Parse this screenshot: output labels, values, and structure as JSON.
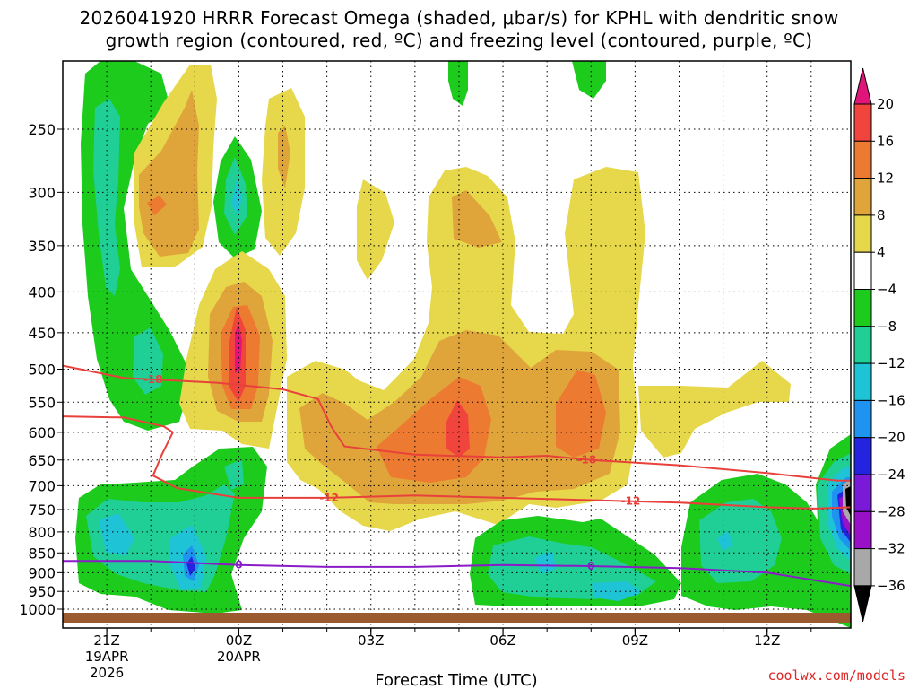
{
  "title_line1": "2026041920 HRRR Forecast Omega (shaded, μbar/s) for KPHL with dendritic snow",
  "title_line2": "growth region (contoured, red, ºC) and freezing level (contoured, purple, ºC)",
  "credit": "coolwx.com/models",
  "colors": {
    "snow_growth": "#e8413c",
    "freezing": "#8a1cc8",
    "terrain": "#9c5a2f",
    "grid": "#000000"
  },
  "chart_data": {
    "type": "heatmap",
    "title": "2026041920 HRRR Forecast Omega (shaded, μbar/s) for KPHL with dendritic snow growth region (contoured, red, ºC) and freezing level (contoured, purple, ºC)",
    "xlabel": "Forecast Time (UTC)",
    "ylabel": "",
    "x_ticks": [
      {
        "label": "21Z",
        "sub1": "19APR",
        "sub2": "2026",
        "hour": 1
      },
      {
        "label": "00Z",
        "sub1": "20APR",
        "sub2": "",
        "hour": 4
      },
      {
        "label": "03Z",
        "sub1": "",
        "sub2": "",
        "hour": 7
      },
      {
        "label": "06Z",
        "sub1": "",
        "sub2": "",
        "hour": 10
      },
      {
        "label": "09Z",
        "sub1": "",
        "sub2": "",
        "hour": 13
      },
      {
        "label": "12Z",
        "sub1": "",
        "sub2": "",
        "hour": 16
      }
    ],
    "xlim": [
      0,
      17.9
    ],
    "y_ticks": [
      250,
      300,
      350,
      400,
      450,
      500,
      550,
      600,
      650,
      700,
      750,
      800,
      850,
      900,
      950,
      1000
    ],
    "ylim_hpa": [
      200,
      1017
    ],
    "y_scale": "log-pressure",
    "colorbar": {
      "ticks": [
        "20",
        "16",
        "12",
        "8",
        "4",
        "−4",
        "−8",
        "−12",
        "−16",
        "−20",
        "−24",
        "−28",
        "−32",
        "−36"
      ],
      "bins": [
        {
          "range": ">20",
          "color": "#e0157a"
        },
        {
          "range": "16 to 20",
          "color": "#f0443c"
        },
        {
          "range": "12 to 16",
          "color": "#ec7a30"
        },
        {
          "range": "8 to 12",
          "color": "#e0a53a"
        },
        {
          "range": "4 to 8",
          "color": "#e6d84a"
        },
        {
          "range": "-4 to 4",
          "color": "#ffffff"
        },
        {
          "range": "-8 to -4",
          "color": "#1ccb1c"
        },
        {
          "range": "-12 to -8",
          "color": "#20cf95"
        },
        {
          "range": "-16 to -12",
          "color": "#1ec3d6"
        },
        {
          "range": "-20 to -16",
          "color": "#1f93f0"
        },
        {
          "range": "-24 to -20",
          "color": "#2424e0"
        },
        {
          "range": "-28 to -24",
          "color": "#7a1ad8"
        },
        {
          "range": "-32 to -28",
          "color": "#9810c8"
        },
        {
          "range": "-36 to -32",
          "color": "#a8a8a8"
        },
        {
          "range": "<-36",
          "color": "#000000"
        }
      ]
    },
    "red_contours": [
      {
        "label": "-18",
        "points": [
          [
            0,
            495
          ],
          [
            1.4,
            513
          ],
          [
            3.5,
            520
          ],
          [
            5,
            530
          ],
          [
            5.8,
            545
          ],
          [
            6.1,
            590
          ],
          [
            6.4,
            625
          ],
          [
            8,
            640
          ],
          [
            10,
            645
          ],
          [
            11,
            642
          ],
          [
            12,
            650
          ],
          [
            14,
            660
          ],
          [
            16,
            675
          ],
          [
            17.6,
            690
          ],
          [
            17.9,
            690
          ]
        ]
      },
      {
        "label": "-12",
        "points": [
          [
            0,
            573
          ],
          [
            1.4,
            575
          ],
          [
            2.3,
            590
          ],
          [
            2.5,
            600
          ],
          [
            2.25,
            640
          ],
          [
            2.05,
            680
          ],
          [
            2.6,
            705
          ],
          [
            4,
            725
          ],
          [
            6,
            725
          ],
          [
            8,
            720
          ],
          [
            10,
            725
          ],
          [
            12,
            730
          ],
          [
            14,
            735
          ],
          [
            16,
            745
          ],
          [
            17.1,
            748
          ],
          [
            17.9,
            745
          ]
        ]
      }
    ],
    "purple_contours": [
      {
        "label": "0",
        "points": [
          [
            0,
            870
          ],
          [
            2,
            870
          ],
          [
            4,
            880
          ],
          [
            6,
            885
          ],
          [
            8,
            885
          ],
          [
            10,
            880
          ],
          [
            12,
            883
          ],
          [
            14,
            888
          ],
          [
            16,
            900
          ],
          [
            17.9,
            935
          ]
        ]
      }
    ]
  }
}
